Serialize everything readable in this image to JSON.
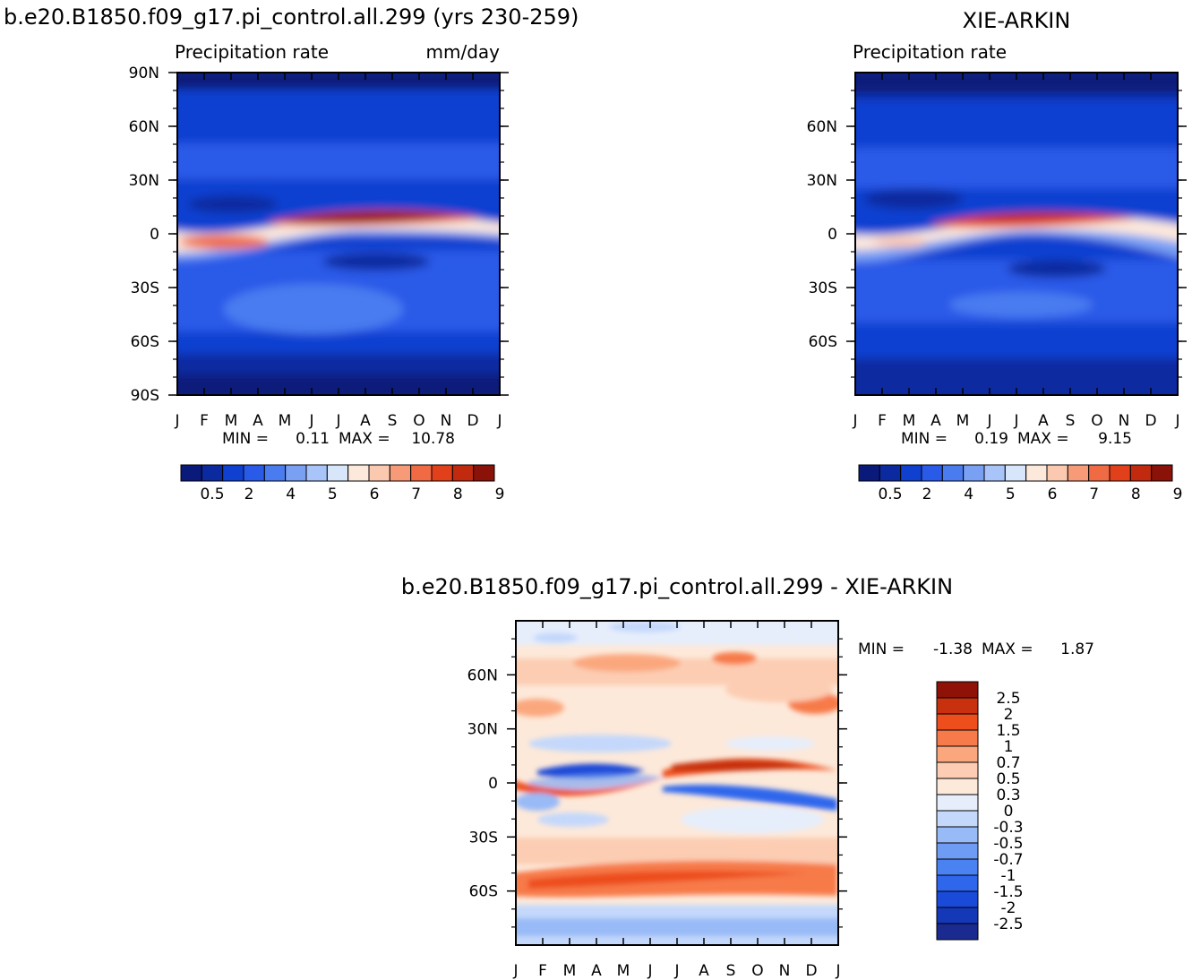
{
  "colors": {
    "abs_levels": [
      "#0a1a7a",
      "#0c2aa0",
      "#1040d0",
      "#2a5ae8",
      "#4a7cf0",
      "#7aa0f4",
      "#a8c4f8",
      "#d8e6fb",
      "#fde8dc",
      "#fbc8b0",
      "#f79a78",
      "#f06a44",
      "#e2401a",
      "#c22a10",
      "#8a1208"
    ],
    "diff_levels": [
      "#1a2a90",
      "#1438b8",
      "#1a4ad8",
      "#2e66ec",
      "#4a82f2",
      "#6e9cf4",
      "#98baf7",
      "#c4d8fb",
      "#e6eefc",
      "#fde9da",
      "#fccdb2",
      "#fba77e",
      "#f77a4a",
      "#ed4e1c",
      "#c8300e",
      "#8e1208"
    ]
  },
  "chart_data": [
    {
      "type": "heatmap",
      "title": "b.e20.B1850.f09_g17.pi_control.all.299 (yrs 230-259)",
      "subtitle_left": "Precipitation rate",
      "subtitle_right": "mm/day",
      "x": [
        "J",
        "F",
        "M",
        "A",
        "M",
        "J",
        "J",
        "A",
        "S",
        "O",
        "N",
        "D",
        "J"
      ],
      "y_ticks": [
        "90N",
        "60N",
        "30N",
        "0",
        "30S",
        "60S",
        "90S"
      ],
      "ylim": [
        -90,
        90
      ],
      "min_label": "MIN =",
      "min_value": "0.11",
      "max_label": "MAX =",
      "max_value": "10.78",
      "colorbar_labels": [
        "0.5",
        "2",
        "4",
        "5",
        "6",
        "7",
        "8",
        "9"
      ],
      "features": [
        {
          "lat": 8,
          "month_peak": 7.5,
          "value": 10.78
        },
        {
          "lat": -5,
          "month_peak": 2,
          "value": 8
        }
      ]
    },
    {
      "type": "heatmap",
      "title": "XIE-ARKIN",
      "subtitle_left": "Precipitation rate",
      "x": [
        "J",
        "F",
        "M",
        "A",
        "M",
        "J",
        "J",
        "A",
        "S",
        "O",
        "N",
        "D",
        "J"
      ],
      "y_ticks": [
        "60N",
        "30N",
        "0",
        "30S",
        "60S"
      ],
      "ylim": [
        -90,
        90
      ],
      "min_label": "MIN =",
      "min_value": "0.19",
      "max_label": "MAX =",
      "max_value": "9.15",
      "colorbar_labels": [
        "0.5",
        "2",
        "4",
        "5",
        "6",
        "7",
        "8",
        "9"
      ]
    },
    {
      "type": "heatmap",
      "title": "b.e20.B1850.f09_g17.pi_control.all.299 - XIE-ARKIN",
      "x": [
        "J",
        "F",
        "M",
        "A",
        "M",
        "J",
        "J",
        "A",
        "S",
        "O",
        "N",
        "D",
        "J"
      ],
      "y_ticks": [
        "60N",
        "30N",
        "0",
        "30S",
        "60S"
      ],
      "ylim": [
        -90,
        90
      ],
      "min_label": "MIN =",
      "min_value": "-1.38",
      "max_label": "MAX =",
      "max_value": "1.87",
      "colorbar_labels": [
        "2.5",
        "2",
        "1.5",
        "1",
        "0.7",
        "0.5",
        "0.3",
        "0",
        "-0.3",
        "-0.5",
        "-0.7",
        "-1",
        "-1.5",
        "-2",
        "-2.5"
      ]
    }
  ]
}
